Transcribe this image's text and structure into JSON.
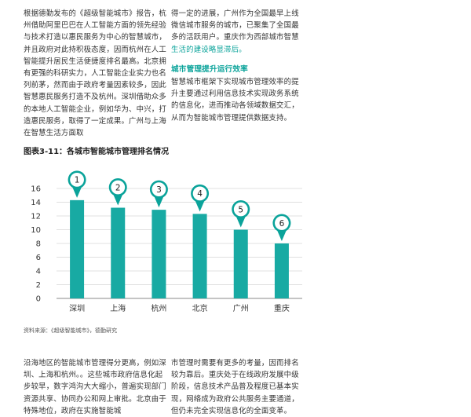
{
  "text": {
    "top_left": "根据德勤发布的《超级智能城市》报告，杭州借助阿里巴巴在人工智能方面的领先经验与技术打造以惠民服务为中心的智慧城市，并且政府对此持积极态度，因而杭州在人工智能提升居民生活便捷度排名最高。北京拥有更强的科研实力，人工智能企业实力也名列前茅，然而由于政府考量因素较多，因此智慧惠民服务打造不及杭州。深圳借助众多的本地人工智能企业，例如华为、中兴，打造惠民服务，取得了一定成果。广州与上海在智慧生活方面取",
    "top_right_plain": "得一定的进展，广州作为全国最早上线微信城市服务的城市，已聚集了全国最多的活跃用户。重庆作为西部城市智慧",
    "top_right_accent": "生活的建设略显滞后。",
    "subheading": "城市管理提升运行效率",
    "top_right_2": "智慧城市框架下实现城市管理效率的提升主要通过利用信息技术实现政务系统的信息化，进而推动各领域数据交汇，从而为智能城市管理提供数据支持。",
    "figure_title": "图表3-11：各城市智能城市管理排名情况",
    "source": "资料来源：《超级智能城市》，德勤研究",
    "bottom_left": "沿海地区的智能城市管理得分更高，例如深圳、上海和杭州。。这些城市政府信息化起步较早，数字鸿沟大大缩小，普遍实现部门资源共享、协同办公和网上审批。北京由于特殊地位，政府在实施智能城",
    "bottom_right": "市管理时需要有更多的考量，因而排名较为靠后。重庆处于在线政府发展中级阶段，信息技术产品普及程度已基本实现，网络成为政府公共服务主要通道，但仍未完全实现信息化的全面变革。"
  },
  "colors": {
    "bar": "#18aaa3",
    "marker": "#0aa39a",
    "grid": "#d6d6d6",
    "axis": "#888888",
    "text": "#333333"
  },
  "chart_data": {
    "type": "bar",
    "categories": [
      "深圳",
      "上海",
      "杭州",
      "北京",
      "广州",
      "重庆"
    ],
    "values": [
      14.3,
      13.2,
      12.9,
      12.3,
      10.0,
      8.0
    ],
    "rank_labels": [
      "1",
      "2",
      "3",
      "4",
      "5",
      "6"
    ],
    "ylim": [
      0,
      16
    ],
    "yticks": [
      0,
      2,
      4,
      6,
      8,
      10,
      12,
      14,
      16
    ],
    "grid": true
  }
}
